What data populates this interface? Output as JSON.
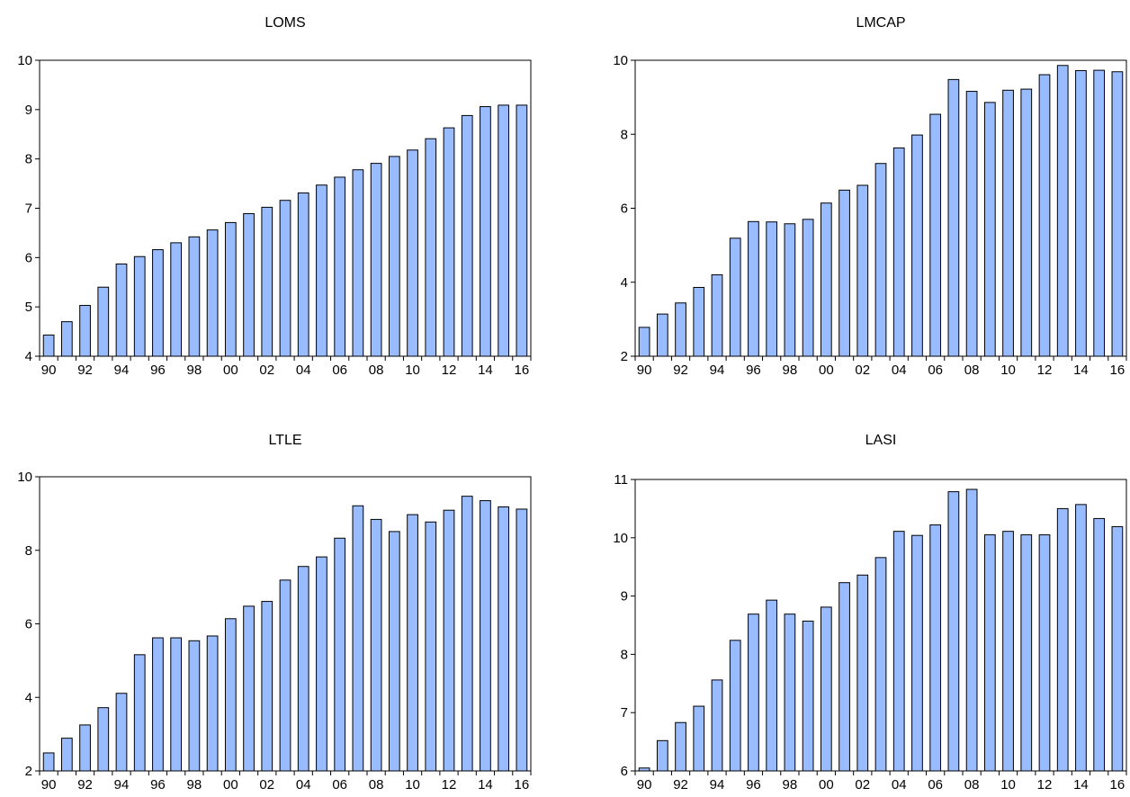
{
  "chart_data": [
    {
      "type": "bar",
      "title": "LOMS",
      "categories": [
        "1990",
        "1991",
        "1992",
        "1993",
        "1994",
        "1995",
        "1996",
        "1997",
        "1998",
        "1999",
        "2000",
        "2001",
        "2002",
        "2003",
        "2004",
        "2005",
        "2006",
        "2007",
        "2008",
        "2009",
        "2010",
        "2011",
        "2012",
        "2013",
        "2014",
        "2015",
        "2016"
      ],
      "tick_labels": [
        "90",
        "92",
        "94",
        "96",
        "98",
        "00",
        "02",
        "04",
        "06",
        "08",
        "10",
        "12",
        "14",
        "16"
      ],
      "values": [
        4.43,
        4.7,
        5.03,
        5.4,
        5.87,
        6.02,
        6.16,
        6.3,
        6.42,
        6.56,
        6.71,
        6.89,
        7.02,
        7.16,
        7.31,
        7.47,
        7.63,
        7.78,
        7.91,
        8.05,
        8.18,
        8.41,
        8.63,
        8.88,
        9.06,
        9.09,
        9.09
      ],
      "ylim": [
        4,
        10
      ],
      "yticks": [
        4,
        5,
        6,
        7,
        8,
        9,
        10
      ],
      "bar_color": "#99bbff"
    },
    {
      "type": "bar",
      "title": "LMCAP",
      "categories": [
        "1990",
        "1991",
        "1992",
        "1993",
        "1994",
        "1995",
        "1996",
        "1997",
        "1998",
        "1999",
        "2000",
        "2001",
        "2002",
        "2003",
        "2004",
        "2005",
        "2006",
        "2007",
        "2008",
        "2009",
        "2010",
        "2011",
        "2012",
        "2013",
        "2014",
        "2015",
        "2016"
      ],
      "tick_labels": [
        "90",
        "92",
        "94",
        "96",
        "98",
        "00",
        "02",
        "04",
        "06",
        "08",
        "10",
        "12",
        "14",
        "16"
      ],
      "values": [
        2.78,
        3.14,
        3.44,
        3.86,
        4.2,
        5.19,
        5.64,
        5.63,
        5.58,
        5.7,
        6.14,
        6.49,
        6.62,
        7.21,
        7.63,
        7.98,
        8.54,
        9.48,
        9.16,
        8.86,
        9.19,
        9.22,
        9.61,
        9.86,
        9.72,
        9.73,
        9.69
      ],
      "ylim": [
        2,
        10
      ],
      "yticks": [
        2,
        4,
        6,
        8,
        10
      ],
      "bar_color": "#99bbff"
    },
    {
      "type": "bar",
      "title": "LTLE",
      "categories": [
        "1990",
        "1991",
        "1992",
        "1993",
        "1994",
        "1995",
        "1996",
        "1997",
        "1998",
        "1999",
        "2000",
        "2001",
        "2002",
        "2003",
        "2004",
        "2005",
        "2006",
        "2007",
        "2008",
        "2009",
        "2010",
        "2011",
        "2012",
        "2013",
        "2014",
        "2015",
        "2016"
      ],
      "tick_labels": [
        "90",
        "92",
        "94",
        "96",
        "98",
        "00",
        "02",
        "04",
        "06",
        "08",
        "10",
        "12",
        "14",
        "16"
      ],
      "values": [
        2.49,
        2.89,
        3.25,
        3.72,
        4.11,
        5.16,
        5.62,
        5.62,
        5.54,
        5.67,
        6.14,
        6.48,
        6.61,
        7.19,
        7.56,
        7.82,
        8.33,
        9.21,
        8.84,
        8.51,
        8.97,
        8.77,
        9.09,
        9.47,
        9.35,
        9.18,
        9.12
      ],
      "ylim": [
        2,
        10
      ],
      "yticks": [
        2,
        4,
        6,
        8,
        10
      ],
      "bar_color": "#99bbff"
    },
    {
      "type": "bar",
      "title": "LASI",
      "categories": [
        "1990",
        "1991",
        "1992",
        "1993",
        "1994",
        "1995",
        "1996",
        "1997",
        "1998",
        "1999",
        "2000",
        "2001",
        "2002",
        "2003",
        "2004",
        "2005",
        "2006",
        "2007",
        "2008",
        "2009",
        "2010",
        "2011",
        "2012",
        "2013",
        "2014",
        "2015",
        "2016"
      ],
      "tick_labels": [
        "90",
        "92",
        "94",
        "96",
        "98",
        "00",
        "02",
        "04",
        "06",
        "08",
        "10",
        "12",
        "14",
        "16"
      ],
      "values": [
        6.05,
        6.52,
        6.83,
        7.11,
        7.56,
        8.24,
        8.69,
        8.93,
        8.69,
        8.57,
        8.81,
        9.23,
        9.36,
        9.66,
        10.11,
        10.04,
        10.22,
        10.79,
        10.83,
        10.05,
        10.11,
        10.05,
        10.05,
        10.5,
        10.57,
        10.33,
        10.19
      ],
      "ylim": [
        6,
        11
      ],
      "yticks": [
        6,
        7,
        8,
        9,
        10,
        11
      ],
      "bar_color": "#99bbff"
    }
  ]
}
